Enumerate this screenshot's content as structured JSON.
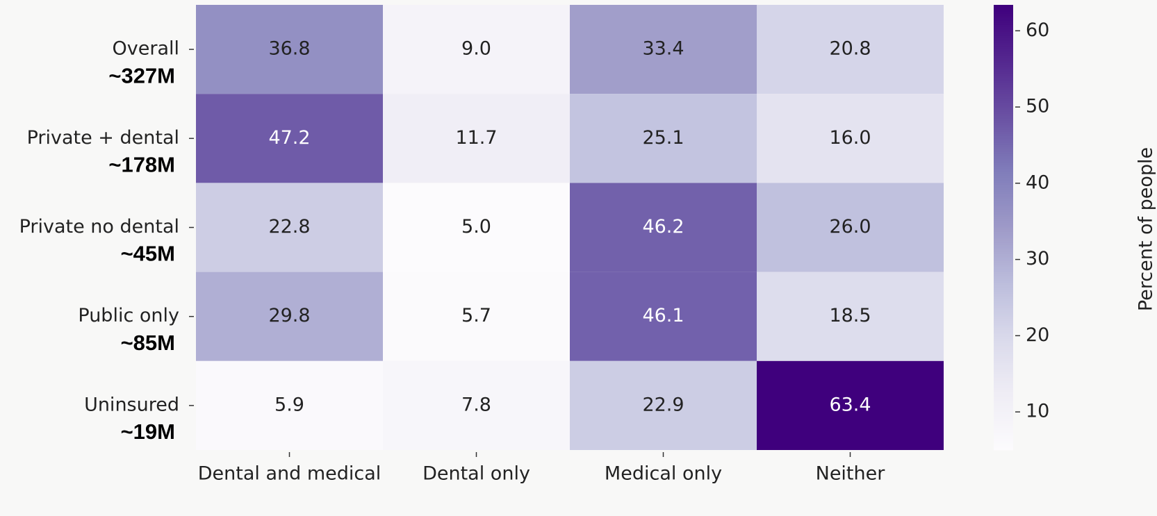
{
  "chart_data": {
    "type": "heatmap",
    "x_categories": [
      "Dental and medical",
      "Dental only",
      "Medical only",
      "Neither"
    ],
    "y_categories": [
      "Overall",
      "Private + dental",
      "Private no dental",
      "Public only",
      "Uninsured"
    ],
    "y_sublabels": [
      "~327M",
      "~178M",
      "~45M",
      "~85M",
      "~19M"
    ],
    "values": [
      [
        36.8,
        9.0,
        33.4,
        20.8
      ],
      [
        47.2,
        11.7,
        25.1,
        16.0
      ],
      [
        22.8,
        5.0,
        46.2,
        26.0
      ],
      [
        29.8,
        5.7,
        46.1,
        18.5
      ],
      [
        5.9,
        7.8,
        22.9,
        63.4
      ]
    ],
    "value_labels": [
      [
        "36.8",
        "9.0",
        "33.4",
        "20.8"
      ],
      [
        "47.2",
        "11.7",
        "25.1",
        "16.0"
      ],
      [
        "22.8",
        "5.0",
        "46.2",
        "26.0"
      ],
      [
        "29.8",
        "5.7",
        "46.1",
        "18.5"
      ],
      [
        "5.9",
        "7.8",
        "22.9",
        "63.4"
      ]
    ],
    "colormap": "Purples",
    "colormap_colors": [
      "#fcfbfd",
      "#efedf5",
      "#dadaeb",
      "#bcbddc",
      "#9e9ac8",
      "#807dba",
      "#6a51a3",
      "#54278f",
      "#3f007d"
    ],
    "clim": [
      5.0,
      63.4
    ],
    "cticks": [
      10,
      20,
      30,
      40,
      50,
      60
    ],
    "colorbar_label": "Percent of people"
  }
}
